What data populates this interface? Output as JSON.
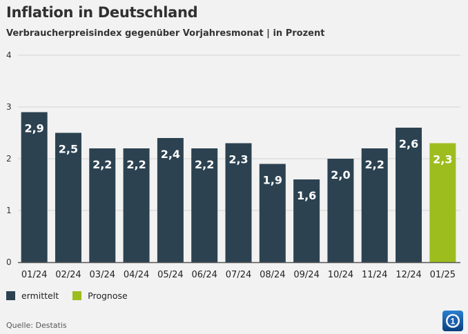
{
  "header": {
    "title": "Inflation in Deutschland",
    "subtitle": "Verbraucherpreisindex gegenüber Vorjahresmonat | in Prozent"
  },
  "colors": {
    "ermittelt": "#2c4251",
    "prognose": "#9dbd1f",
    "grid": "#d4d4d4",
    "axis": "#555555"
  },
  "legend": [
    {
      "label": "ermittelt",
      "color_key": "ermittelt"
    },
    {
      "label": "Prognose",
      "color_key": "prognose"
    }
  ],
  "source": "Quelle: Destatis",
  "logo_icon": "tagesschau-logo-icon",
  "chart_data": {
    "type": "bar",
    "title": "Inflation in Deutschland",
    "subtitle": "Verbraucherpreisindex gegenüber Vorjahresmonat | in Prozent",
    "categories": [
      "01/24",
      "02/24",
      "03/24",
      "04/24",
      "05/24",
      "06/24",
      "07/24",
      "08/24",
      "09/24",
      "10/24",
      "11/24",
      "12/24",
      "01/25"
    ],
    "values": [
      2.9,
      2.5,
      2.2,
      2.2,
      2.4,
      2.2,
      2.3,
      1.9,
      1.6,
      2.0,
      2.2,
      2.6,
      2.3
    ],
    "value_labels": [
      "2,9",
      "2,5",
      "2,2",
      "2,2",
      "2,4",
      "2,2",
      "2,3",
      "1,9",
      "1,6",
      "2,0",
      "2,2",
      "2,6",
      "2,3"
    ],
    "kinds": [
      "ermittelt",
      "ermittelt",
      "ermittelt",
      "ermittelt",
      "ermittelt",
      "ermittelt",
      "ermittelt",
      "ermittelt",
      "ermittelt",
      "ermittelt",
      "ermittelt",
      "ermittelt",
      "prognose"
    ],
    "yticks": [
      "0",
      "1",
      "2",
      "3",
      "4"
    ],
    "ylim": [
      0,
      4
    ],
    "grid": true,
    "legend_position": "bottom-left"
  }
}
